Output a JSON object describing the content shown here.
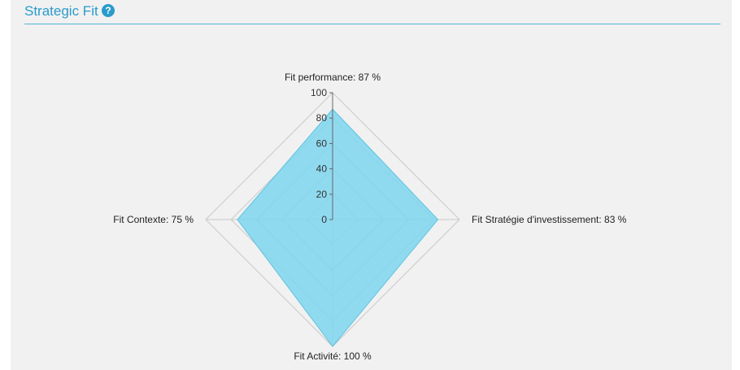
{
  "header": {
    "title": "Strategic Fit",
    "help_icon": "question-circle-icon"
  },
  "colors": {
    "accent": "#2a9bcb",
    "area_fill": "#7fd6ee",
    "area_stroke": "#5cc3e0",
    "grid": "#c9c9c9",
    "panel_bg": "#f1f1f1"
  },
  "chart_data": {
    "type": "radar",
    "axes": [
      {
        "label": "Fit performance: 87 %",
        "value": 87
      },
      {
        "label": "Fit Stratégie d'investissement: 83 %",
        "value": 83
      },
      {
        "label": "Fit Activité: 100 %",
        "value": 100
      },
      {
        "label": "Fit Contexte: 75 %",
        "value": 75
      }
    ],
    "rlim": [
      0,
      100
    ],
    "ticks": [
      0,
      20,
      40,
      60,
      80,
      100
    ],
    "grid": true,
    "legend": false
  }
}
